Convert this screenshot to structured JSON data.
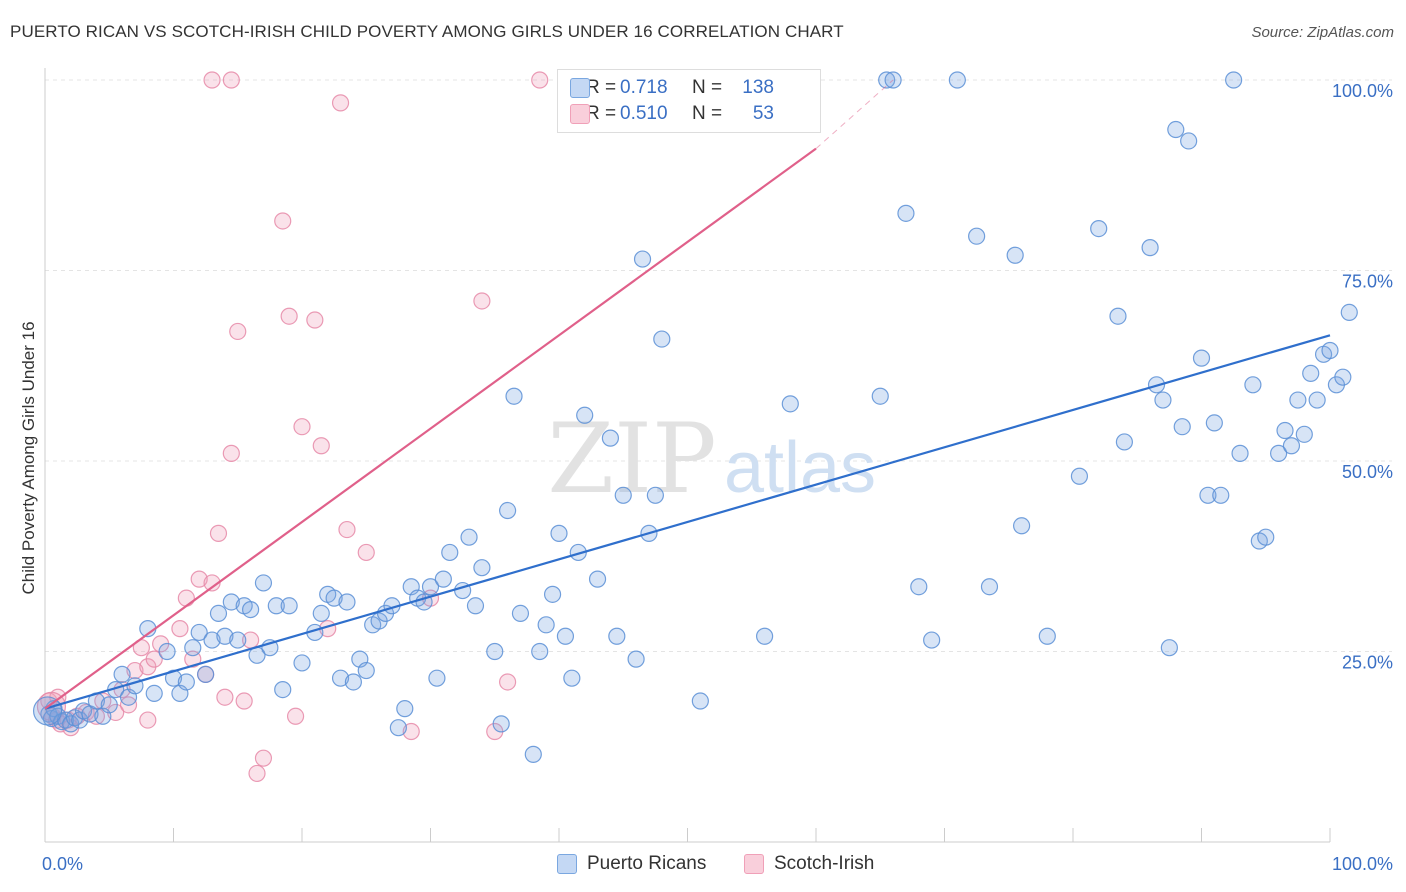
{
  "header": {
    "title": "PUERTO RICAN VS SCOTCH-IRISH CHILD POVERTY AMONG GIRLS UNDER 16 CORRELATION CHART",
    "source": "Source: ZipAtlas.com"
  },
  "watermark": {
    "zip": "ZIP",
    "atlas": "atlas"
  },
  "legend": {
    "rows": [
      {
        "r_label": "R =",
        "r_value": "0.718",
        "n_label": "N =",
        "n_value": "138",
        "color": "#7aa7e0"
      },
      {
        "r_label": "R =",
        "r_value": "0.510",
        "n_label": "N =",
        "n_value": "53",
        "color": "#f0a0b8"
      }
    ]
  },
  "bottom_legend": [
    {
      "label": "Puerto Ricans",
      "color": "#7aa7e0"
    },
    {
      "label": "Scotch-Irish",
      "color": "#f0a0b8"
    }
  ],
  "chart_data": {
    "type": "scatter",
    "title": "PUERTO RICAN VS SCOTCH-IRISH CHILD POVERTY AMONG GIRLS UNDER 16 CORRELATION CHART",
    "xlabel": "",
    "ylabel": "Child Poverty Among Girls Under 16",
    "xlim": [
      0,
      100
    ],
    "ylim": [
      0,
      100
    ],
    "x_tick_labels": [
      "0.0%",
      "100.0%"
    ],
    "y_ticks": [
      25,
      50,
      75,
      100
    ],
    "y_tick_labels": [
      "25.0%",
      "50.0%",
      "75.0%",
      "100.0%"
    ],
    "grid": true,
    "legend_position": "top-center",
    "series": [
      {
        "name": "Puerto Ricans",
        "color": "#7aa7e0",
        "stroke": "#5b8fd6",
        "trend": {
          "x": [
            0,
            100
          ],
          "y": [
            17.5,
            66.5
          ],
          "color": "#2f6fcc"
        },
        "points": [
          [
            0.3,
            16.8
          ],
          [
            0.5,
            16.2
          ],
          [
            0.7,
            17.5
          ],
          [
            1.0,
            16.5
          ],
          [
            1.3,
            15.8
          ],
          [
            1.6,
            16.0
          ],
          [
            2.0,
            15.5
          ],
          [
            2.3,
            16.3
          ],
          [
            2.7,
            16.0
          ],
          [
            3.0,
            17.2
          ],
          [
            3.5,
            16.8
          ],
          [
            4.0,
            18.5
          ],
          [
            4.5,
            16.5
          ],
          [
            5.0,
            18.0
          ],
          [
            5.5,
            20.0
          ],
          [
            6.0,
            22.0
          ],
          [
            6.5,
            19.0
          ],
          [
            7.0,
            20.5
          ],
          [
            8.0,
            28.0
          ],
          [
            8.5,
            19.5
          ],
          [
            9.5,
            25.0
          ],
          [
            10.0,
            21.5
          ],
          [
            10.5,
            19.5
          ],
          [
            11.0,
            21.0
          ],
          [
            11.5,
            25.5
          ],
          [
            12.0,
            27.5
          ],
          [
            12.5,
            22.0
          ],
          [
            13.0,
            26.5
          ],
          [
            13.5,
            30.0
          ],
          [
            14.0,
            27.0
          ],
          [
            14.5,
            31.5
          ],
          [
            15.0,
            26.5
          ],
          [
            15.5,
            31.0
          ],
          [
            16.0,
            30.5
          ],
          [
            16.5,
            24.5
          ],
          [
            17.0,
            34.0
          ],
          [
            17.5,
            25.5
          ],
          [
            18.0,
            31.0
          ],
          [
            18.5,
            20.0
          ],
          [
            19.0,
            31.0
          ],
          [
            20.0,
            23.5
          ],
          [
            21.0,
            27.5
          ],
          [
            21.5,
            30.0
          ],
          [
            22.0,
            32.5
          ],
          [
            22.5,
            32.0
          ],
          [
            23.0,
            21.5
          ],
          [
            23.5,
            31.5
          ],
          [
            24.0,
            21.0
          ],
          [
            24.5,
            24.0
          ],
          [
            25.0,
            22.5
          ],
          [
            25.5,
            28.5
          ],
          [
            26.0,
            29.0
          ],
          [
            26.5,
            30.0
          ],
          [
            27.0,
            31.0
          ],
          [
            27.5,
            15.0
          ],
          [
            28.0,
            17.5
          ],
          [
            28.5,
            33.5
          ],
          [
            29.0,
            32.0
          ],
          [
            29.5,
            31.5
          ],
          [
            30.0,
            33.5
          ],
          [
            30.5,
            21.5
          ],
          [
            31.0,
            34.5
          ],
          [
            31.5,
            38.0
          ],
          [
            32.5,
            33.0
          ],
          [
            33.0,
            40.0
          ],
          [
            33.5,
            31.0
          ],
          [
            34.0,
            36.0
          ],
          [
            35.0,
            25.0
          ],
          [
            35.5,
            15.5
          ],
          [
            36.0,
            43.5
          ],
          [
            36.5,
            58.5
          ],
          [
            37.0,
            30.0
          ],
          [
            38.0,
            11.5
          ],
          [
            38.5,
            25.0
          ],
          [
            39.0,
            28.5
          ],
          [
            39.5,
            32.5
          ],
          [
            40.0,
            40.5
          ],
          [
            40.5,
            27.0
          ],
          [
            41.0,
            21.5
          ],
          [
            41.5,
            38.0
          ],
          [
            42.0,
            56.0
          ],
          [
            43.0,
            34.5
          ],
          [
            44.0,
            53.0
          ],
          [
            44.5,
            27.0
          ],
          [
            45.0,
            45.5
          ],
          [
            46.0,
            24.0
          ],
          [
            46.5,
            76.5
          ],
          [
            47.0,
            40.5
          ],
          [
            47.5,
            45.5
          ],
          [
            48.0,
            66.0
          ],
          [
            51.0,
            18.5
          ],
          [
            56.0,
            27.0
          ],
          [
            58.0,
            57.5
          ],
          [
            65.0,
            58.5
          ],
          [
            65.5,
            100.0
          ],
          [
            66.0,
            100.0
          ],
          [
            67.0,
            82.5
          ],
          [
            68.0,
            33.5
          ],
          [
            69.0,
            26.5
          ],
          [
            71.0,
            100.0
          ],
          [
            72.5,
            79.5
          ],
          [
            73.5,
            33.5
          ],
          [
            75.5,
            77.0
          ],
          [
            76.0,
            41.5
          ],
          [
            78.0,
            27.0
          ],
          [
            80.5,
            48.0
          ],
          [
            82.0,
            80.5
          ],
          [
            83.5,
            69.0
          ],
          [
            84.0,
            52.5
          ],
          [
            86.0,
            78.0
          ],
          [
            86.5,
            60.0
          ],
          [
            87.0,
            58.0
          ],
          [
            87.5,
            25.5
          ],
          [
            88.0,
            93.5
          ],
          [
            88.5,
            54.5
          ],
          [
            89.0,
            92.0
          ],
          [
            90.0,
            63.5
          ],
          [
            90.5,
            45.5
          ],
          [
            91.0,
            55.0
          ],
          [
            91.5,
            45.5
          ],
          [
            92.5,
            100.0
          ],
          [
            93.0,
            51.0
          ],
          [
            94.0,
            60.0
          ],
          [
            94.5,
            39.5
          ],
          [
            95.0,
            40.0
          ],
          [
            96.0,
            51.0
          ],
          [
            96.5,
            54.0
          ],
          [
            97.0,
            52.0
          ],
          [
            97.5,
            58.0
          ],
          [
            98.0,
            53.5
          ],
          [
            98.5,
            61.5
          ],
          [
            99.0,
            58.0
          ],
          [
            99.5,
            64.0
          ],
          [
            100.0,
            64.5
          ],
          [
            100.5,
            60.0
          ],
          [
            101.0,
            61.0
          ],
          [
            101.5,
            69.5
          ],
          [
            0.2,
            17.2
          ]
        ]
      },
      {
        "name": "Scotch-Irish",
        "color": "#f0a0b8",
        "stroke": "#e68aa8",
        "trend": {
          "x": [
            0,
            60
          ],
          "y": [
            17.5,
            91.0
          ],
          "color": "#e0608a",
          "dashed_to": [
            66,
            100
          ]
        },
        "points": [
          [
            0.3,
            18.5
          ],
          [
            0.6,
            16.5
          ],
          [
            0.9,
            16.0
          ],
          [
            1.2,
            15.5
          ],
          [
            1.8,
            16.0
          ],
          [
            2.5,
            16.5
          ],
          [
            3.2,
            17.0
          ],
          [
            4.0,
            16.5
          ],
          [
            4.5,
            18.5
          ],
          [
            5.5,
            17.0
          ],
          [
            6.0,
            20.0
          ],
          [
            6.5,
            18.0
          ],
          [
            7.0,
            22.5
          ],
          [
            7.5,
            25.5
          ],
          [
            8.0,
            23.0
          ],
          [
            8.5,
            24.0
          ],
          [
            9.0,
            26.0
          ],
          [
            10.5,
            28.0
          ],
          [
            11.0,
            32.0
          ],
          [
            11.5,
            24.0
          ],
          [
            12.0,
            34.5
          ],
          [
            12.5,
            22.0
          ],
          [
            13.0,
            34.0
          ],
          [
            13.5,
            40.5
          ],
          [
            14.0,
            19.0
          ],
          [
            14.5,
            51.0
          ],
          [
            15.0,
            67.0
          ],
          [
            15.5,
            18.5
          ],
          [
            16.0,
            26.5
          ],
          [
            16.5,
            9.0
          ],
          [
            17.0,
            11.0
          ],
          [
            18.5,
            81.5
          ],
          [
            19.0,
            69.0
          ],
          [
            19.5,
            16.5
          ],
          [
            20.0,
            54.5
          ],
          [
            21.0,
            68.5
          ],
          [
            21.5,
            52.0
          ],
          [
            22.0,
            28.0
          ],
          [
            23.0,
            97.0
          ],
          [
            23.5,
            41.0
          ],
          [
            25.0,
            38.0
          ],
          [
            28.5,
            14.5
          ],
          [
            30.0,
            32.0
          ],
          [
            34.0,
            71.0
          ],
          [
            35.0,
            14.5
          ],
          [
            36.0,
            21.0
          ],
          [
            38.5,
            100.0
          ],
          [
            13.0,
            100.0
          ],
          [
            14.5,
            100.0
          ],
          [
            8.0,
            16.0
          ],
          [
            2.0,
            15.0
          ],
          [
            1.0,
            19.0
          ],
          [
            0.5,
            17.8
          ]
        ]
      }
    ]
  }
}
